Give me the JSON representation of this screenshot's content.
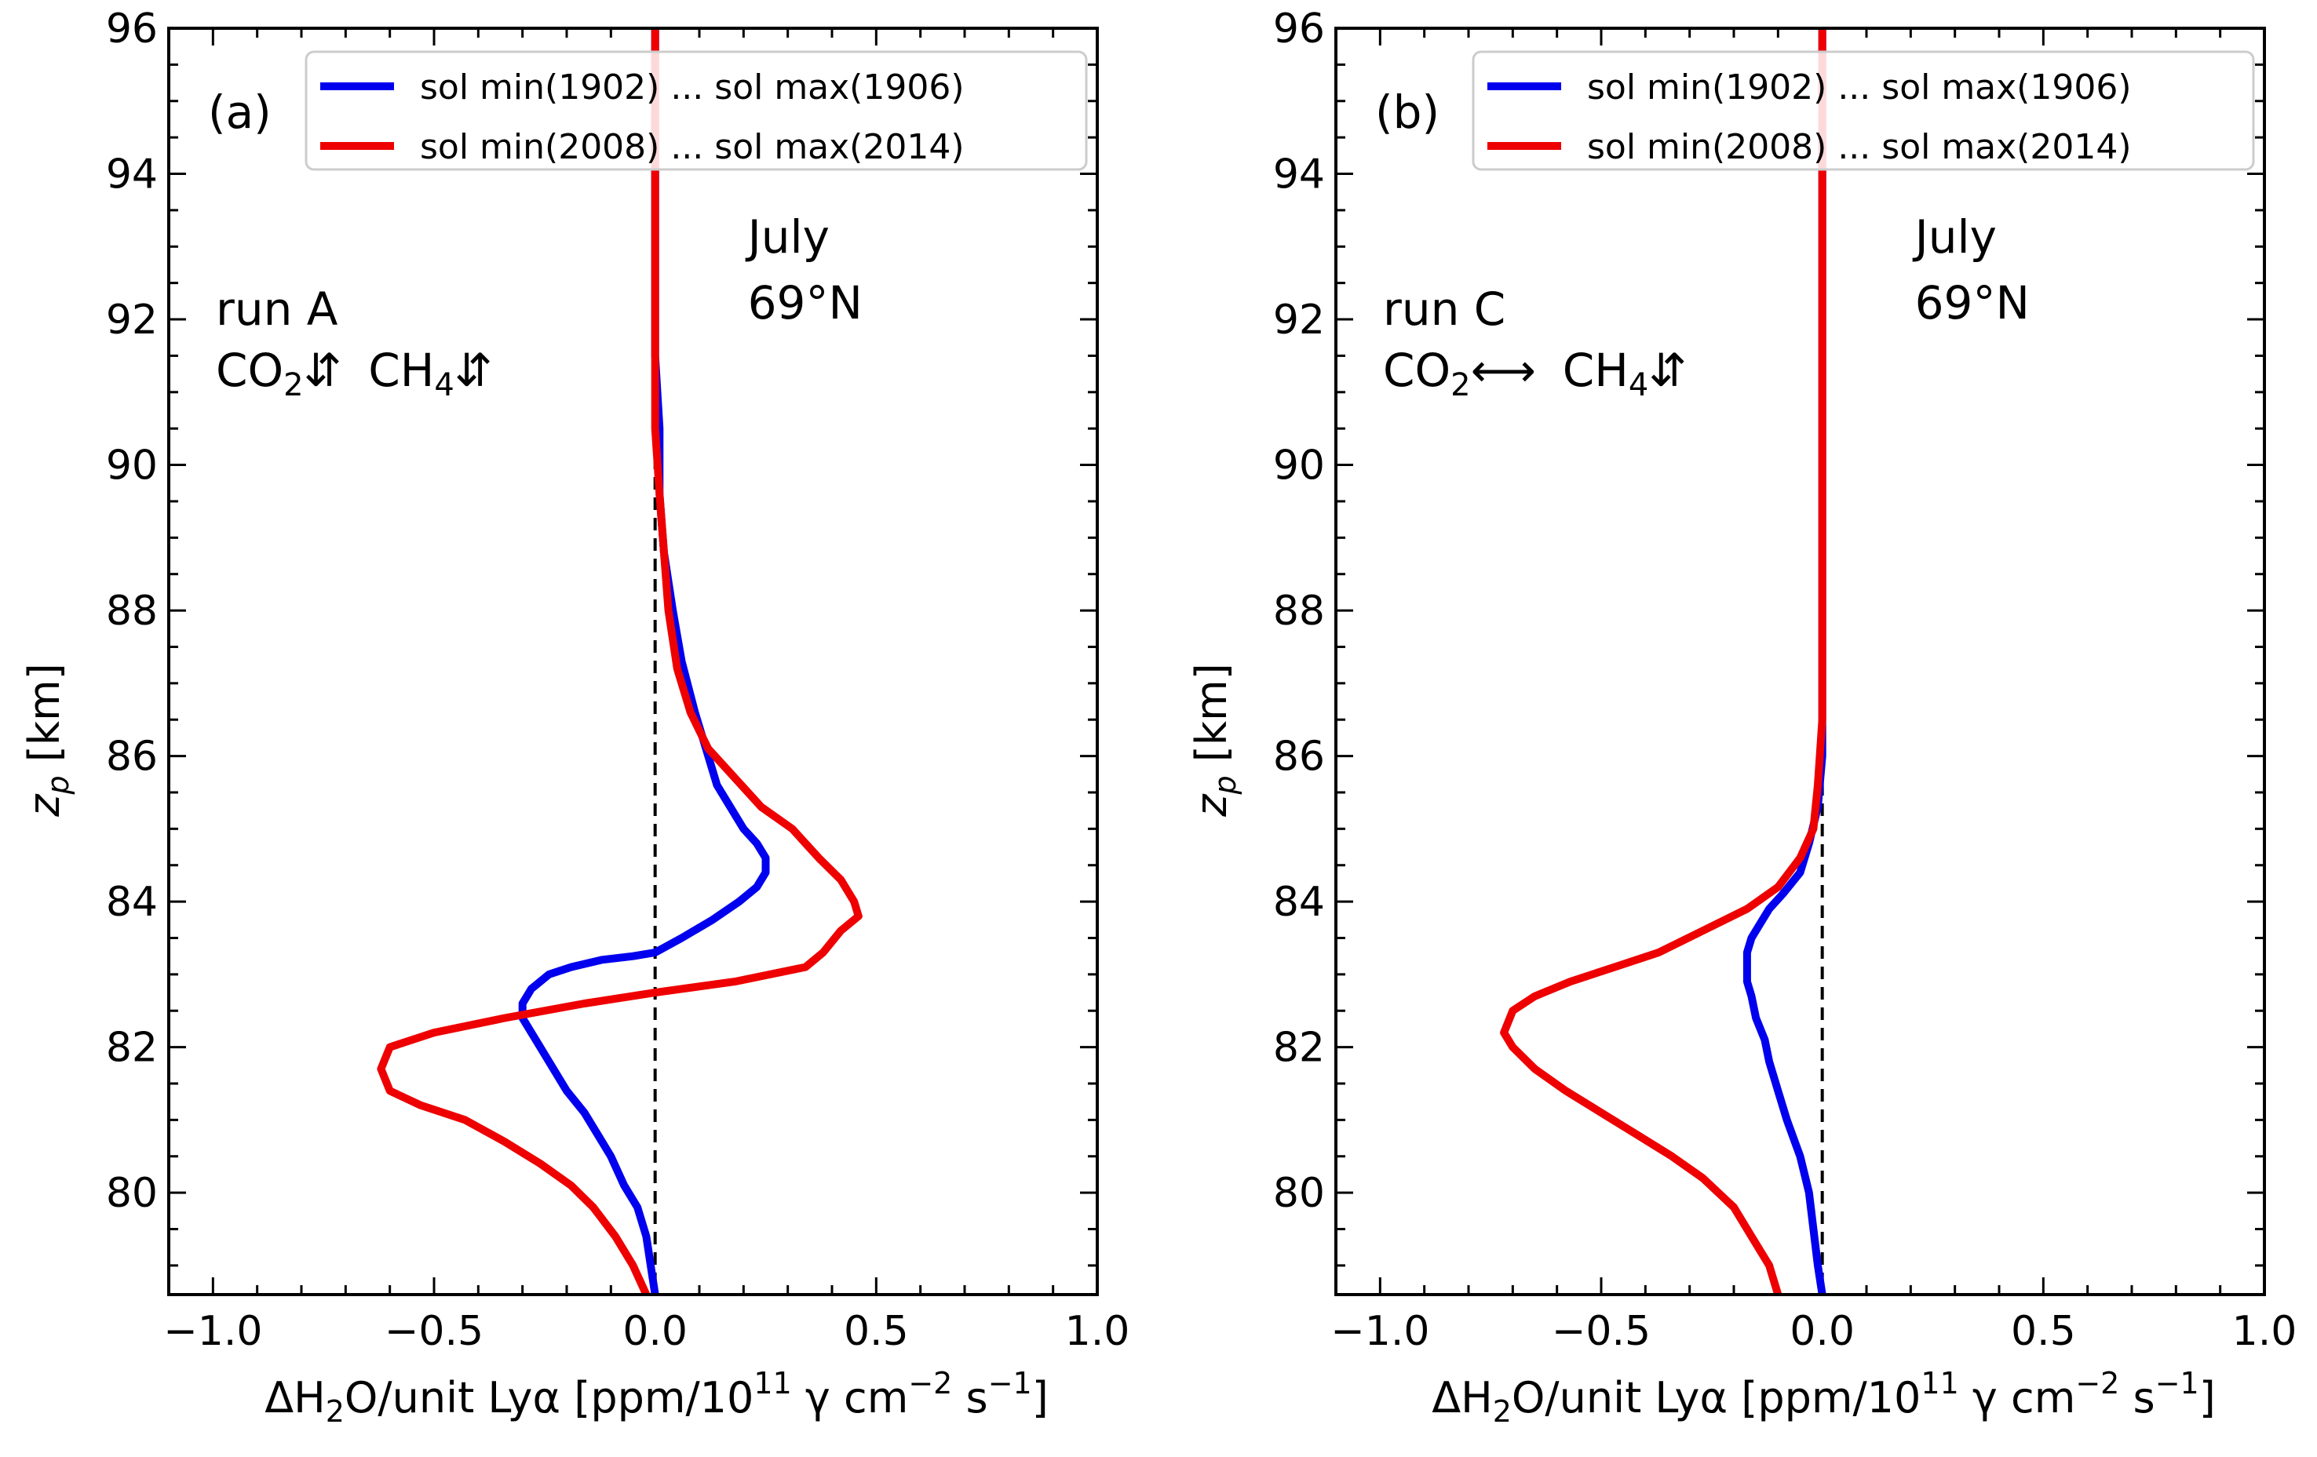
{
  "chart_data": [
    {
      "type": "line",
      "panel_label": "(a)",
      "xlabel": "ΔH₂O/unit Lyα  [ppm/10¹¹ γ cm⁻² s⁻¹]",
      "xlabel_parts": {
        "main": "ΔH",
        "sub1": "2",
        "mid": "O/unit Lyα  [ppm/10",
        "sup1": "11",
        "mid2": " γ cm",
        "sup2": "−2",
        "mid3": " s",
        "sup3": "−1",
        "end": "]"
      },
      "ylabel": "z_p [km]",
      "ylabel_parts": {
        "main": "z",
        "sub": "p",
        "end": " [km]"
      },
      "xlim": [
        -1.1,
        1.0
      ],
      "ylim": [
        78.6,
        96
      ],
      "x_ticks": [
        -1.0,
        -0.5,
        0.0,
        0.5,
        1.0
      ],
      "x_tick_labels": [
        "−1.0",
        "−0.5",
        "0.0",
        "0.5",
        "1.0"
      ],
      "y_ticks": [
        80,
        82,
        84,
        86,
        88,
        90,
        92,
        94,
        96
      ],
      "y_tick_labels": [
        "80",
        "82",
        "84",
        "86",
        "88",
        "90",
        "92",
        "94",
        "96"
      ],
      "legend_position": "top-right",
      "annotations": {
        "run": "run A",
        "co2": {
          "text": "CO",
          "sub": "2",
          "arrow": "⇵"
        },
        "ch4": {
          "text": "CH",
          "sub": "4",
          "arrow": "⇵"
        },
        "month": "July",
        "lat": "69°N"
      },
      "zero_line": true,
      "series": [
        {
          "name": "sol min(1902) ... sol max(1906)",
          "color": "#0000ee",
          "x": [
            0.0,
            -0.01,
            -0.02,
            -0.04,
            -0.07,
            -0.1,
            -0.13,
            -0.16,
            -0.2,
            -0.24,
            -0.27,
            -0.3,
            -0.3,
            -0.28,
            -0.24,
            -0.19,
            -0.12,
            -0.05,
            0.0,
            0.06,
            0.13,
            0.19,
            0.23,
            0.25,
            0.25,
            0.23,
            0.2,
            0.17,
            0.14,
            0.12,
            0.09,
            0.06,
            0.04,
            0.02,
            0.01,
            0.01,
            0.0,
            0.0,
            0.0,
            0.0
          ],
          "y": [
            78.6,
            79.0,
            79.4,
            79.8,
            80.1,
            80.5,
            80.8,
            81.1,
            81.4,
            81.8,
            82.1,
            82.4,
            82.6,
            82.8,
            83.0,
            83.1,
            83.2,
            83.25,
            83.3,
            83.5,
            83.75,
            84.0,
            84.2,
            84.4,
            84.6,
            84.8,
            85.0,
            85.3,
            85.6,
            86.0,
            86.6,
            87.3,
            88.0,
            88.8,
            89.6,
            90.5,
            91.5,
            93.0,
            94.5,
            96.0
          ]
        },
        {
          "name": "sol min(2008) ... sol max(2014)",
          "color": "#ee0000",
          "x": [
            -0.02,
            -0.05,
            -0.09,
            -0.14,
            -0.19,
            -0.26,
            -0.34,
            -0.43,
            -0.53,
            -0.6,
            -0.62,
            -0.6,
            -0.5,
            -0.34,
            -0.16,
            0.0,
            0.18,
            0.34,
            0.38,
            0.42,
            0.46,
            0.45,
            0.42,
            0.37,
            0.31,
            0.24,
            0.18,
            0.12,
            0.08,
            0.05,
            0.03,
            0.02,
            0.01,
            0.0,
            0.0,
            0.0,
            0.0
          ],
          "y": [
            78.6,
            79.0,
            79.4,
            79.8,
            80.1,
            80.4,
            80.7,
            81.0,
            81.2,
            81.4,
            81.7,
            82.0,
            82.2,
            82.4,
            82.6,
            82.75,
            82.9,
            83.1,
            83.3,
            83.6,
            83.8,
            84.0,
            84.3,
            84.6,
            85.0,
            85.3,
            85.7,
            86.1,
            86.6,
            87.2,
            88.0,
            88.8,
            89.6,
            90.5,
            92.0,
            94.0,
            96.0
          ]
        }
      ]
    },
    {
      "type": "line",
      "panel_label": "(b)",
      "xlabel": "ΔH₂O/unit Lyα  [ppm/10¹¹ γ cm⁻² s⁻¹]",
      "xlabel_parts": {
        "main": "ΔH",
        "sub1": "2",
        "mid": "O/unit Lyα  [ppm/10",
        "sup1": "11",
        "mid2": " γ cm",
        "sup2": "−2",
        "mid3": " s",
        "sup3": "−1",
        "end": "]"
      },
      "ylabel": "z_p [km]",
      "ylabel_parts": {
        "main": "z",
        "sub": "p",
        "end": " [km]"
      },
      "xlim": [
        -1.1,
        1.0
      ],
      "ylim": [
        78.6,
        96
      ],
      "x_ticks": [
        -1.0,
        -0.5,
        0.0,
        0.5,
        1.0
      ],
      "x_tick_labels": [
        "−1.0",
        "−0.5",
        "0.0",
        "0.5",
        "1.0"
      ],
      "y_ticks": [
        80,
        82,
        84,
        86,
        88,
        90,
        92,
        94,
        96
      ],
      "y_tick_labels": [
        "80",
        "82",
        "84",
        "86",
        "88",
        "90",
        "92",
        "94",
        "96"
      ],
      "legend_position": "top-right",
      "annotations": {
        "run": "run C",
        "co2": {
          "text": "CO",
          "sub": "2",
          "arrow": "⟷"
        },
        "ch4": {
          "text": "CH",
          "sub": "4",
          "arrow": "⇵"
        },
        "month": "July",
        "lat": "69°N"
      },
      "zero_line": true,
      "series": [
        {
          "name": "sol min(1902) ... sol max(1906)",
          "color": "#0000ee",
          "x": [
            0.0,
            -0.01,
            -0.02,
            -0.03,
            -0.05,
            -0.08,
            -0.1,
            -0.12,
            -0.13,
            -0.15,
            -0.16,
            -0.17,
            -0.17,
            -0.17,
            -0.16,
            -0.14,
            -0.12,
            -0.09,
            -0.05,
            -0.03,
            -0.01,
            0.0,
            0.0,
            0.0,
            0.0,
            0.0
          ],
          "y": [
            78.6,
            79.0,
            79.5,
            80.0,
            80.5,
            81.0,
            81.4,
            81.8,
            82.1,
            82.4,
            82.7,
            82.9,
            83.1,
            83.3,
            83.5,
            83.7,
            83.9,
            84.1,
            84.4,
            84.8,
            85.3,
            86.0,
            88.0,
            90.0,
            93.0,
            96.0
          ]
        },
        {
          "name": "sol min(2008) ... sol max(2014)",
          "color": "#ee0000",
          "x": [
            -0.1,
            -0.12,
            -0.16,
            -0.2,
            -0.27,
            -0.34,
            -0.42,
            -0.5,
            -0.58,
            -0.65,
            -0.7,
            -0.72,
            -0.7,
            -0.65,
            -0.57,
            -0.47,
            -0.37,
            -0.27,
            -0.17,
            -0.1,
            -0.05,
            -0.02,
            -0.01,
            0.0,
            0.0,
            0.0,
            0.0
          ],
          "y": [
            78.6,
            79.0,
            79.4,
            79.8,
            80.2,
            80.5,
            80.8,
            81.1,
            81.4,
            81.7,
            82.0,
            82.2,
            82.5,
            82.7,
            82.9,
            83.1,
            83.3,
            83.6,
            83.9,
            84.2,
            84.6,
            85.0,
            85.6,
            86.5,
            89.0,
            92.0,
            96.0
          ]
        }
      ]
    }
  ]
}
